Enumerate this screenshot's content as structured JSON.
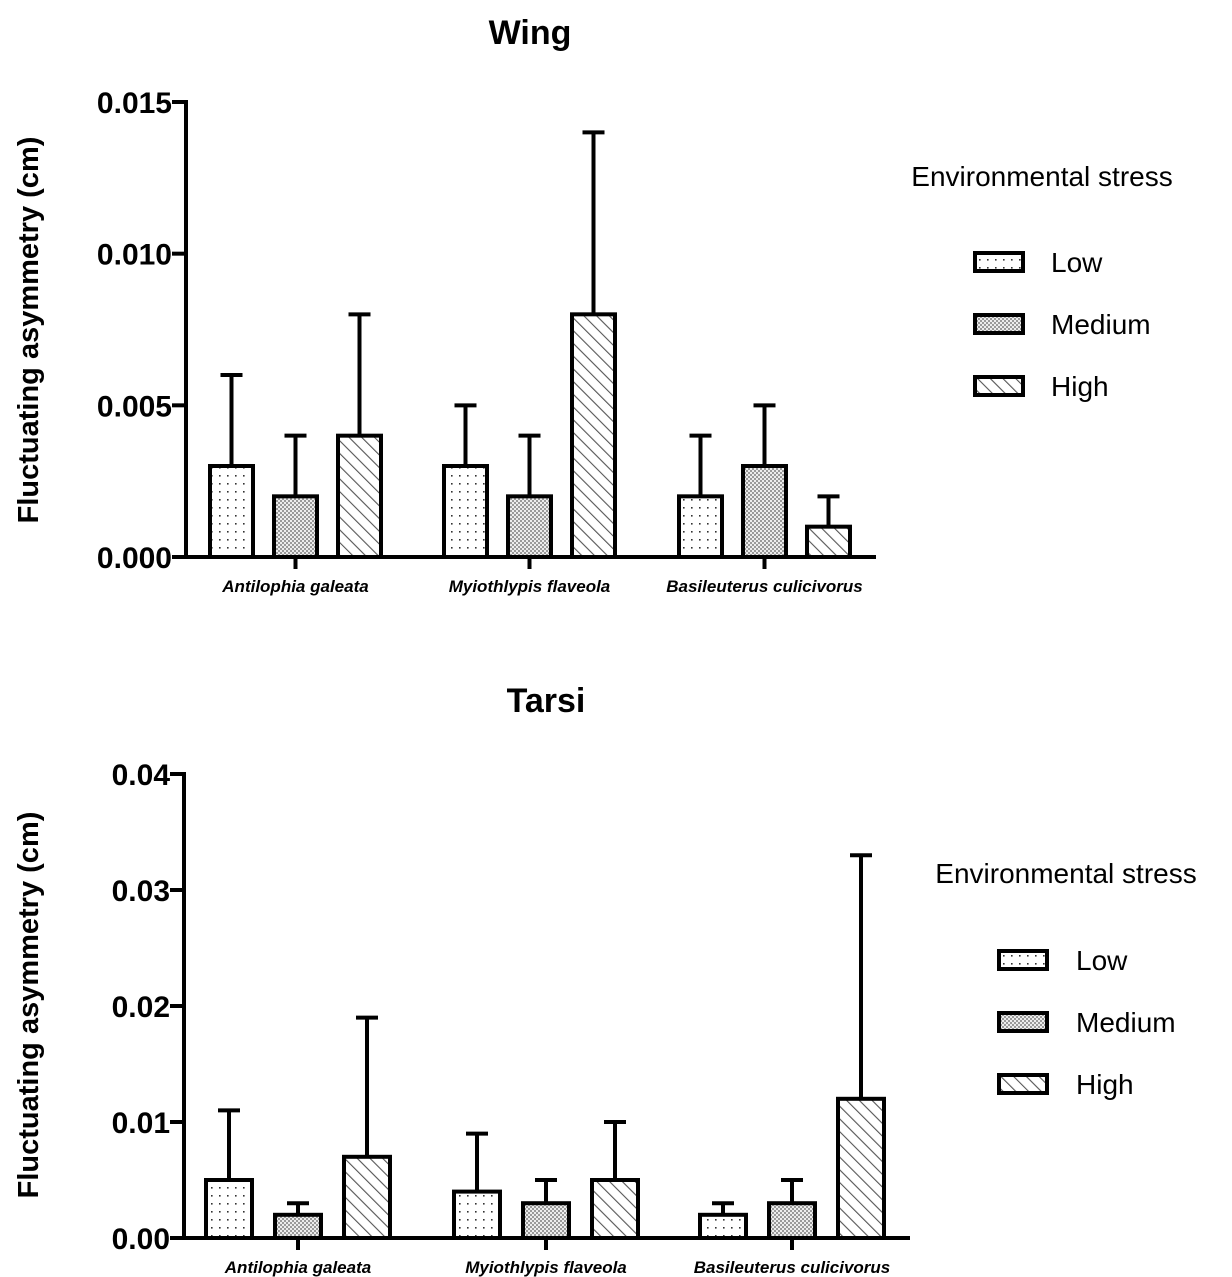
{
  "chart_data": [
    {
      "type": "bar",
      "title": "Wing",
      "ylabel": "Fluctuating asymmetry (cm)",
      "xlabel": "",
      "ylim": [
        0,
        0.015
      ],
      "yticks": [
        "0.000",
        "0.005",
        "0.010",
        "0.015"
      ],
      "categories": [
        "Antilophia galeata",
        "Myiothlypis flaveola",
        "Basileuterus culicivorus"
      ],
      "legend_title": "Environmental stress",
      "legend_position": "right",
      "series": [
        {
          "name": "Low",
          "pattern": "dots",
          "values": [
            0.003,
            0.003,
            0.002
          ],
          "error": [
            0.003,
            0.002,
            0.002
          ]
        },
        {
          "name": "Medium",
          "pattern": "checker",
          "values": [
            0.002,
            0.002,
            0.003
          ],
          "error": [
            0.002,
            0.002,
            0.002
          ]
        },
        {
          "name": "High",
          "pattern": "hatch",
          "values": [
            0.004,
            0.008,
            0.001
          ],
          "error": [
            0.004,
            0.006,
            0.001
          ]
        }
      ]
    },
    {
      "type": "bar",
      "title": "Tarsi",
      "ylabel": "Fluctuating asymmetry (cm)",
      "xlabel": "",
      "ylim": [
        0,
        0.04
      ],
      "yticks": [
        "0.00",
        "0.01",
        "0.02",
        "0.03",
        "0.04"
      ],
      "categories": [
        "Antilophia galeata",
        "Myiothlypis flaveola",
        "Basileuterus culicivorus"
      ],
      "legend_title": "Environmental stress",
      "legend_position": "right",
      "series": [
        {
          "name": "Low",
          "pattern": "dots",
          "values": [
            0.005,
            0.004,
            0.002
          ],
          "error": [
            0.006,
            0.005,
            0.001
          ]
        },
        {
          "name": "Medium",
          "pattern": "checker",
          "values": [
            0.002,
            0.003,
            0.003
          ],
          "error": [
            0.001,
            0.002,
            0.002
          ]
        },
        {
          "name": "High",
          "pattern": "hatch",
          "values": [
            0.007,
            0.005,
            0.012
          ],
          "error": [
            0.012,
            0.005,
            0.021
          ]
        }
      ]
    }
  ],
  "colors": {
    "axis": "#000000",
    "checker": "#c4c4c4",
    "background": "#ffffff"
  }
}
